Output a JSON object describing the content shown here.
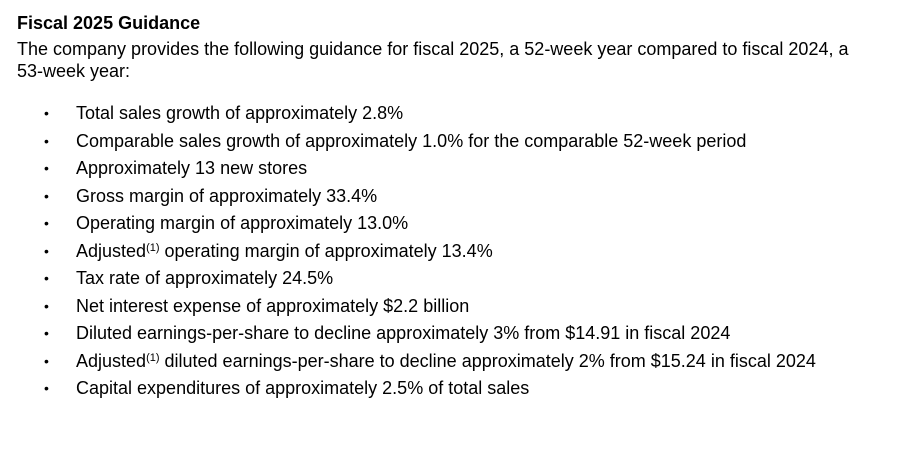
{
  "section": {
    "title": "Fiscal 2025 Guidance",
    "intro": "The company provides the following guidance for fiscal 2025, a 52-week year compared to fiscal 2024, a 53-week year:"
  },
  "bullet_glyph": "•",
  "footnote_marker": "(1)",
  "items": [
    {
      "text": "Total sales growth of approximately 2.8%"
    },
    {
      "text": "Comparable sales growth of approximately 1.0% for the comparable 52-week period"
    },
    {
      "text": "Approximately 13 new stores"
    },
    {
      "text": "Gross margin of approximately 33.4%"
    },
    {
      "text": "Operating margin of approximately 13.0%"
    },
    {
      "prefix": "Adjusted",
      "text": " operating margin of approximately 13.4%"
    },
    {
      "text": "Tax rate of approximately 24.5%"
    },
    {
      "text": "Net interest expense of approximately $2.2 billion"
    },
    {
      "text": "Diluted earnings-per-share to decline approximately 3% from $14.91 in fiscal 2024"
    },
    {
      "prefix": "Adjusted",
      "text": " diluted earnings-per-share to decline approximately 2% from $15.24 in fiscal 2024"
    },
    {
      "text": "Capital expenditures of approximately 2.5% of total sales"
    }
  ]
}
